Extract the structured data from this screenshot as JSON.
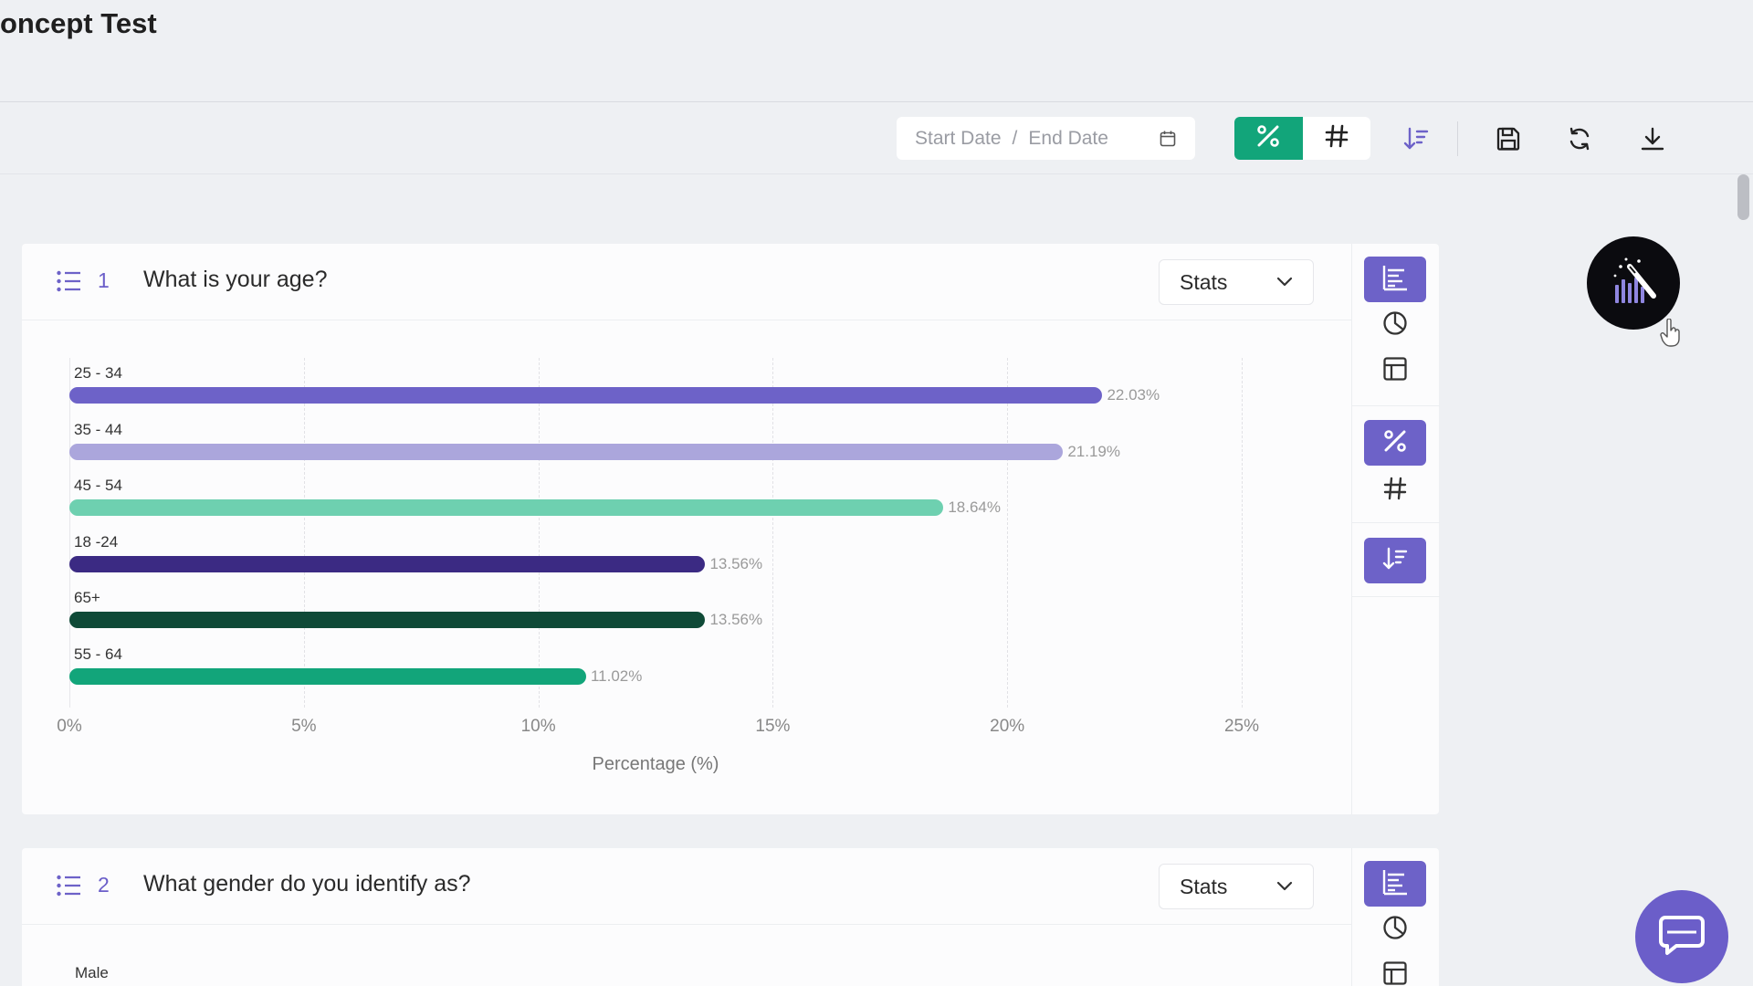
{
  "page": {
    "title": "oncept Test"
  },
  "toolbar": {
    "start_date_placeholder": "Start Date",
    "separator": "/",
    "end_date_placeholder": "End Date",
    "calendar_icon": "calendar-icon",
    "percent_toggle_icon": "percent-icon",
    "count_toggle_icon": "hash-icon",
    "active_mode": "percent",
    "sort_icon": "sort-desc-icon",
    "save_icon": "save-icon",
    "refresh_icon": "refresh-icon",
    "download_icon": "download-icon"
  },
  "colors": {
    "accent_green": "#12a57a",
    "accent_purple": "#6d62c8",
    "question_number": "#6b5ec9"
  },
  "questions": [
    {
      "number": "1",
      "text": "What is your age?",
      "view_select": "Stats"
    },
    {
      "number": "2",
      "text": "What gender do you identify as?",
      "view_select": "Stats",
      "first_category": "Male"
    }
  ],
  "side_panel": {
    "chart_types": [
      "bar-chart-icon",
      "pie-chart-icon",
      "table-icon"
    ],
    "active_chart_type": "bar-chart-icon",
    "display_modes": [
      "percent-icon",
      "hash-icon"
    ],
    "active_display_mode": "percent-icon",
    "sort_icon": "sort-desc-icon"
  },
  "chart_data": {
    "type": "bar",
    "orientation": "horizontal",
    "categories": [
      "25 - 34",
      "35 - 44",
      "45 - 54",
      "18 -24",
      "65+",
      "55 - 64"
    ],
    "values": [
      22.03,
      21.19,
      18.64,
      13.56,
      13.56,
      11.02
    ],
    "value_labels": [
      "22.03%",
      "21.19%",
      "18.64%",
      "13.56%",
      "13.56%",
      "11.02%"
    ],
    "colors": [
      "#6d62c8",
      "#aba6dc",
      "#6ed0b0",
      "#3b2a83",
      "#0f4a37",
      "#12a57a"
    ],
    "xlim": [
      0,
      25
    ],
    "x_ticks": [
      "0%",
      "5%",
      "10%",
      "15%",
      "20%",
      "25%"
    ],
    "x_tick_values": [
      0,
      5,
      10,
      15,
      20,
      25
    ],
    "xlabel": "Percentage (%)",
    "grid": true
  },
  "widgets": {
    "magic_button_icon": "magic-wand-chart-icon",
    "chat_button_icon": "chat-icon"
  }
}
